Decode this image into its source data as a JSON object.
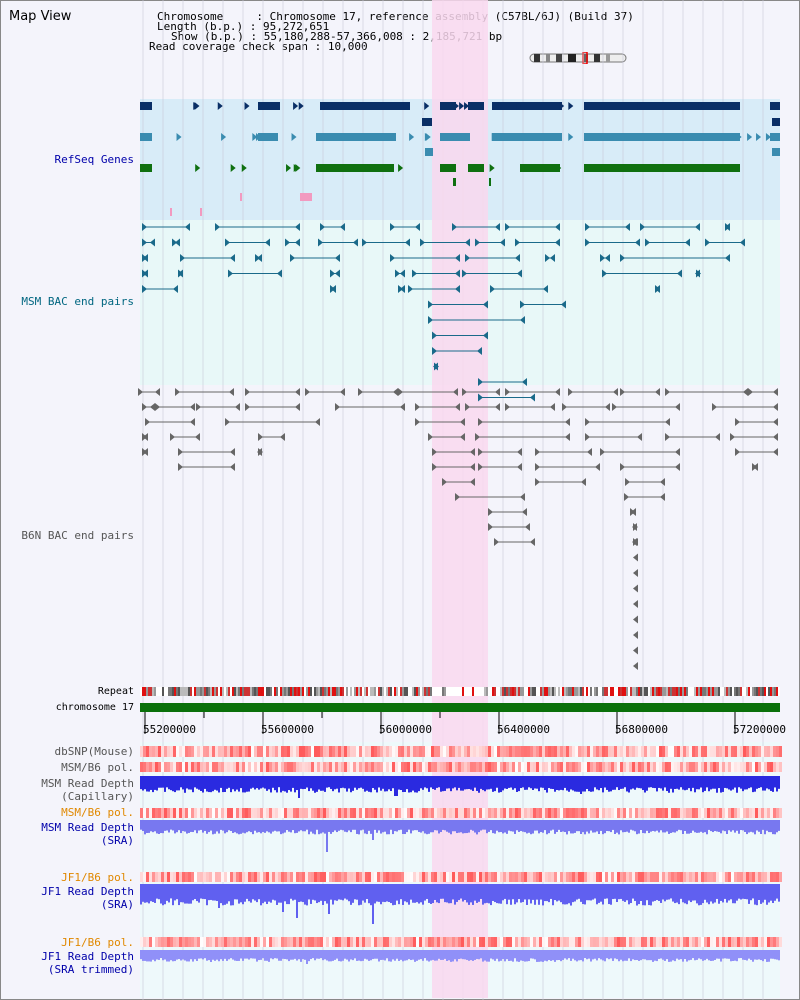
{
  "title": "Map View",
  "info": {
    "chromosome_label": "Chromosome",
    "chromosome_value": "Chromosome 17, reference assembly (C57BL/6J) (Build 37)",
    "length_label": "Length (b.p.)",
    "length_value": "95,272,651",
    "show_label": "Show (b.p.)",
    "show_value": "55,180,288-57,366,008 : 2,185,721 bp",
    "coverage_label": "Read coverage check span",
    "coverage_value": "10,000"
  },
  "tracks": {
    "refseq": "RefSeq Genes",
    "msm_bac": "MSM BAC end pairs",
    "b6n_bac": "B6N BAC end pairs",
    "repeat": "Repeat",
    "chromosome": "chromosome 17",
    "dbsnp": "dbSNP(Mouse)",
    "msm_b6_pol_1": "MSM/B6 pol.",
    "msm_depth_cap_1": "MSM Read Depth",
    "msm_depth_cap_2": "(Capillary)",
    "msm_b6_pol_2": "MSM/B6 pol.",
    "msm_depth_sra_1": "MSM Read Depth",
    "msm_depth_sra_2": "(SRA)",
    "jf1_b6_pol_1": "JF1/B6 pol.",
    "jf1_depth_sra_1": "JF1 Read Depth",
    "jf1_depth_sra_2": "(SRA)",
    "jf1_b6_pol_2": "JF1/B6 pol.",
    "jf1_depth_trim_1": "JF1 Read Depth",
    "jf1_depth_trim_2": "(SRA trimmed)"
  },
  "axis": {
    "ticks": [
      "55200000",
      "55600000",
      "56000000",
      "56400000",
      "56800000",
      "57200000"
    ]
  },
  "colors": {
    "highlight": "#f9d8ef",
    "refseq_bg": "#d8ecf8",
    "bac_bg": "#e8f8f8",
    "gene_dark": "#0a2f66",
    "gene_mid": "#3a8cb0",
    "gene_green": "#0f7010",
    "bac_msm": "#1a6a8a",
    "bac_b6n": "#666666",
    "chrom_green": "#0a700a",
    "depth_blue": "#2a2ae0"
  }
}
